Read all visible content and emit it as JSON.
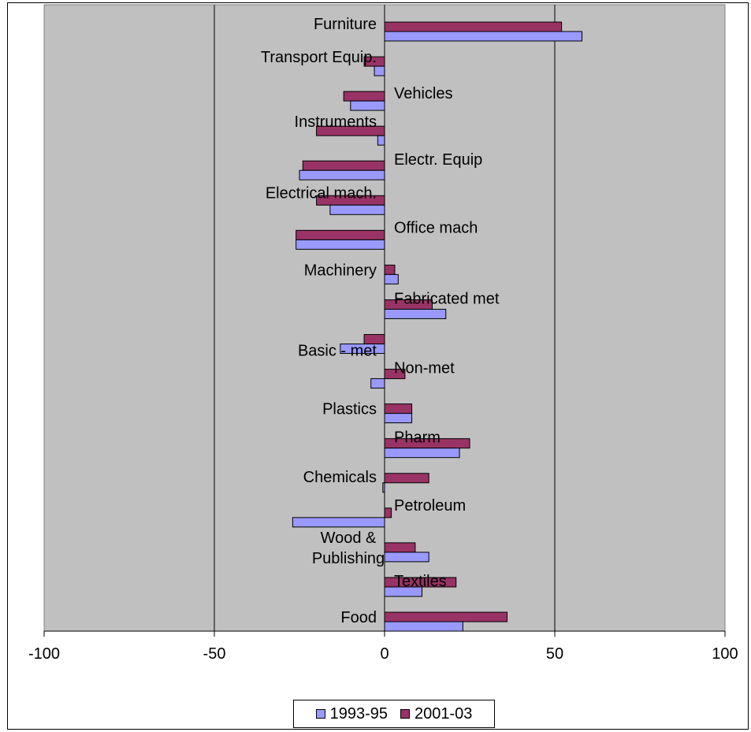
{
  "chart_data": {
    "type": "bar",
    "orientation": "horizontal",
    "categories": [
      "Furniture",
      "Transport Equip.",
      "Vehicles",
      "Instruments",
      "Electr. Equip",
      "Electrical mach.",
      "Office mach",
      "Machinery",
      "Fabricated met",
      "Basic - met",
      "Non-met",
      "Plastics",
      "Pharm",
      "Chemicals",
      "Petroleum",
      "Wood & Publishing",
      "Textiles",
      "Food"
    ],
    "series": [
      {
        "name": "1993-95",
        "color": "#9999ff",
        "values": [
          58,
          -3,
          -10,
          -2,
          -25,
          -16,
          -26,
          4,
          18,
          -13,
          -4,
          8,
          22,
          -0.5,
          -27,
          13,
          11,
          23
        ]
      },
      {
        "name": "2001-03",
        "color": "#993366",
        "values": [
          52,
          -6,
          -12,
          -20,
          -24,
          -20,
          -26,
          3,
          14,
          -6,
          6,
          8,
          25,
          13,
          2,
          9,
          21,
          36
        ]
      }
    ],
    "xlim": [
      -100,
      100
    ],
    "xticks": [
      "-100",
      "-50",
      "0",
      "50",
      "100"
    ],
    "gridlines": true,
    "plot_background": "#c0c0c0",
    "legend_position": "bottom"
  }
}
